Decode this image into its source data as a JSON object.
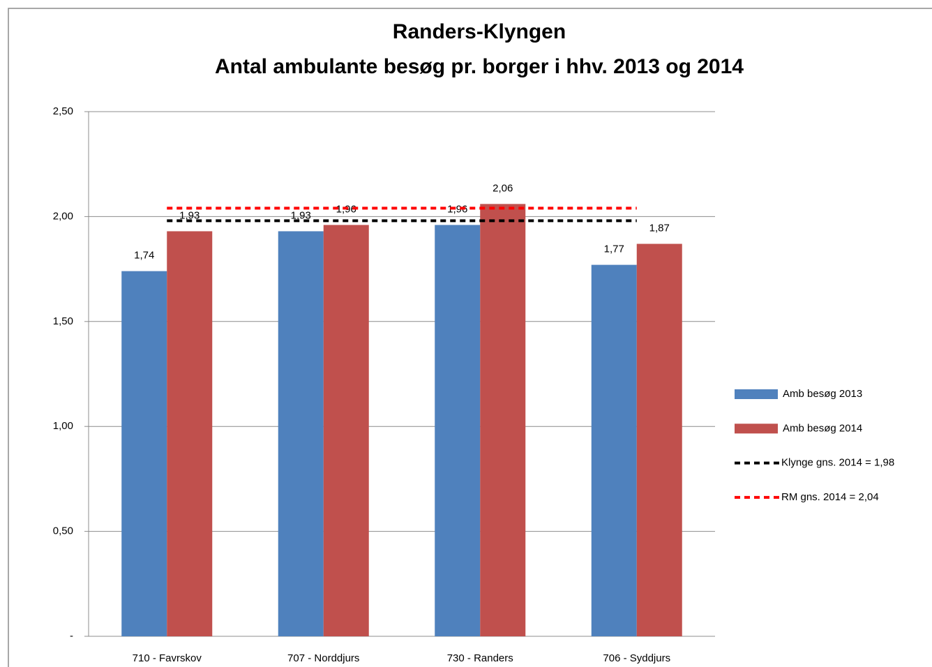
{
  "chart_data": {
    "type": "bar",
    "title": "Randers-Klyngen",
    "subtitle": "Antal ambulante besøg pr. borger i hhv. 2013 og 2014",
    "categories": [
      "710 - Favrskov",
      "707 - Norddjurs",
      "730 - Randers",
      "706 - Syddjurs"
    ],
    "series": [
      {
        "name": "Amb besøg 2013",
        "color": "#4f81bd",
        "type": "bar",
        "values": [
          1.74,
          1.93,
          1.96,
          1.77
        ],
        "value_labels": [
          "1,74",
          "1,93",
          "1,96",
          "1,77"
        ]
      },
      {
        "name": "Amb besøg 2014",
        "color": "#c0504d",
        "type": "bar",
        "values": [
          1.93,
          1.96,
          2.06,
          1.87
        ],
        "value_labels": [
          "1,93",
          "1,96",
          "2,06",
          "1,87"
        ]
      },
      {
        "name": "Klynge gns. 2014 = 1,98",
        "color": "#000000",
        "type": "line",
        "values": [
          1.98,
          1.98,
          1.98,
          1.98
        ]
      },
      {
        "name": "RM gns. 2014 = 2,04",
        "color": "#ff0000",
        "type": "line",
        "values": [
          2.04,
          2.04,
          2.04,
          2.04
        ]
      }
    ],
    "ylim": [
      0,
      2.5
    ],
    "yticks": [
      {
        "value": 0,
        "label": "-"
      },
      {
        "value": 0.5,
        "label": "0,50"
      },
      {
        "value": 1,
        "label": "1,00"
      },
      {
        "value": 1.5,
        "label": "1,50"
      },
      {
        "value": 2,
        "label": "2,00"
      },
      {
        "value": 2.5,
        "label": "2,50"
      }
    ],
    "grid": true,
    "legend": "right"
  }
}
